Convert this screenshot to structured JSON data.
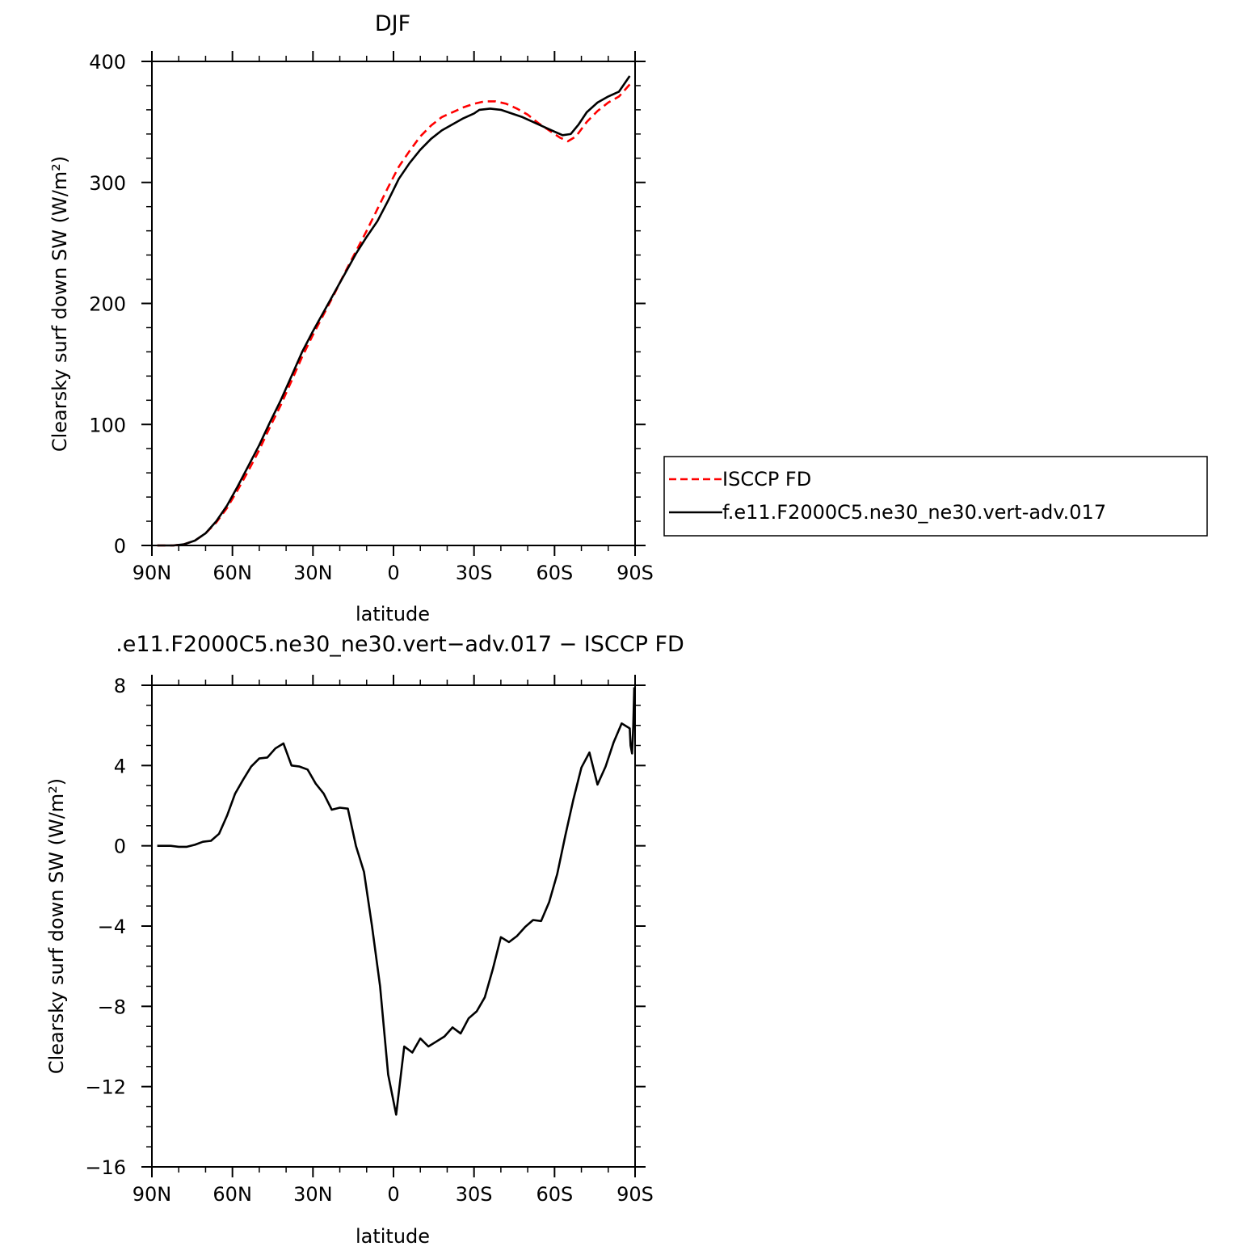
{
  "chart_data": [
    {
      "type": "line",
      "title": "DJF",
      "xlabel": "latitude",
      "ylabel": "Clearsky surf down SW (W/m²)",
      "x_axis_ticks": [
        "90N",
        "60N",
        "30N",
        "0",
        "30S",
        "60S",
        "90S"
      ],
      "y_axis_ticks": [
        "0",
        "100",
        "200",
        "300",
        "400"
      ],
      "xlim": [
        -90,
        90
      ],
      "ylim": [
        0,
        400
      ],
      "x_note": "latitude in degrees, negative = N, positive = S",
      "legend": {
        "placement": "right",
        "entries": [
          "ISCCP FD",
          "f.e11.F2000C5.ne30_ne30.vert-adv.017"
        ]
      },
      "series": [
        {
          "name": "ISCCP FD",
          "color": "#ff0000",
          "style": "dashed",
          "points": [
            [
              -88,
              0
            ],
            [
              -82,
              0
            ],
            [
              -78,
              1
            ],
            [
              -74,
              4
            ],
            [
              -70,
              10
            ],
            [
              -66,
              19
            ],
            [
              -62,
              31
            ],
            [
              -58,
              46
            ],
            [
              -54,
              62
            ],
            [
              -50,
              79
            ],
            [
              -46,
              98
            ],
            [
              -42,
              116
            ],
            [
              -38,
              136
            ],
            [
              -34,
              156
            ],
            [
              -30,
              174
            ],
            [
              -26,
              191
            ],
            [
              -22,
              208
            ],
            [
              -18,
              226
            ],
            [
              -14,
              243
            ],
            [
              -10,
              260
            ],
            [
              -6,
              278
            ],
            [
              -2,
              296
            ],
            [
              2,
              313
            ],
            [
              6,
              326
            ],
            [
              10,
              338
            ],
            [
              14,
              347
            ],
            [
              18,
              354
            ],
            [
              22,
              358
            ],
            [
              26,
              362
            ],
            [
              30,
              365
            ],
            [
              34,
              367
            ],
            [
              38,
              367
            ],
            [
              42,
              365
            ],
            [
              46,
              361
            ],
            [
              50,
              356
            ],
            [
              54,
              349
            ],
            [
              58,
              343
            ],
            [
              62,
              337
            ],
            [
              65,
              334
            ],
            [
              68,
              338
            ],
            [
              72,
              350
            ],
            [
              76,
              359
            ],
            [
              80,
              366
            ],
            [
              84,
              371
            ],
            [
              88,
              381
            ]
          ]
        },
        {
          "name": "f.e11.F2000C5.ne30_ne30.vert-adv.017",
          "color": "#000000",
          "style": "solid",
          "points": [
            [
              -88,
              0
            ],
            [
              -82,
              0
            ],
            [
              -78,
              1
            ],
            [
              -74,
              4
            ],
            [
              -70,
              10
            ],
            [
              -66,
              20
            ],
            [
              -62,
              33
            ],
            [
              -58,
              49
            ],
            [
              -54,
              66
            ],
            [
              -50,
              83
            ],
            [
              -46,
              102
            ],
            [
              -42,
              120
            ],
            [
              -38,
              140
            ],
            [
              -34,
              160
            ],
            [
              -30,
              177
            ],
            [
              -26,
              193
            ],
            [
              -22,
              209
            ],
            [
              -18,
              225
            ],
            [
              -14,
              241
            ],
            [
              -10,
              255
            ],
            [
              -6,
              268
            ],
            [
              -2,
              285
            ],
            [
              2,
              303
            ],
            [
              6,
              316
            ],
            [
              10,
              327
            ],
            [
              14,
              336
            ],
            [
              18,
              343
            ],
            [
              22,
              348
            ],
            [
              26,
              353
            ],
            [
              30,
              357
            ],
            [
              32,
              360
            ],
            [
              36,
              361
            ],
            [
              40,
              360
            ],
            [
              44,
              357
            ],
            [
              48,
              354
            ],
            [
              52,
              350
            ],
            [
              56,
              346
            ],
            [
              60,
              342
            ],
            [
              63,
              339
            ],
            [
              66,
              340
            ],
            [
              69,
              348
            ],
            [
              72,
              358
            ],
            [
              76,
              366
            ],
            [
              80,
              371
            ],
            [
              84,
              375
            ],
            [
              88,
              388
            ]
          ]
        }
      ]
    },
    {
      "type": "line",
      "title": ".e11.F2000C5.ne30_ne30.vert−adv.017 − ISCCP FD",
      "xlabel": "latitude",
      "ylabel": "Clearsky surf down SW (W/m²)",
      "x_axis_ticks": [
        "90N",
        "60N",
        "30N",
        "0",
        "30S",
        "60S",
        "90S"
      ],
      "y_axis_ticks": [
        "−16",
        "−12",
        "−8",
        "−4",
        "0",
        "4",
        "8"
      ],
      "xlim": [
        -90,
        90
      ],
      "ylim": [
        -16,
        8
      ],
      "series": [
        {
          "name": "",
          "color": "#000000",
          "style": "solid",
          "points": [
            [
              -88,
              0
            ],
            [
              -83,
              0
            ],
            [
              -80,
              -0.05
            ],
            [
              -77,
              -0.05
            ],
            [
              -74,
              0.05
            ],
            [
              -71,
              0.2
            ],
            [
              -68,
              0.25
            ],
            [
              -65,
              0.6
            ],
            [
              -62,
              1.5
            ],
            [
              -59,
              2.6
            ],
            [
              -56,
              3.3
            ],
            [
              -53,
              3.95
            ],
            [
              -50,
              4.35
            ],
            [
              -47,
              4.4
            ],
            [
              -44,
              4.85
            ],
            [
              -41,
              5.1
            ],
            [
              -38,
              4.0
            ],
            [
              -35,
              3.95
            ],
            [
              -32,
              3.8
            ],
            [
              -29,
              3.1
            ],
            [
              -26,
              2.6
            ],
            [
              -23,
              1.8
            ],
            [
              -20,
              1.9
            ],
            [
              -17,
              1.85
            ],
            [
              -14,
              0
            ],
            [
              -11,
              -1.3
            ],
            [
              -8,
              -4.0
            ],
            [
              -5,
              -7.0
            ],
            [
              -2,
              -11.4
            ],
            [
              1,
              -13.4
            ],
            [
              4,
              -10.0
            ],
            [
              7,
              -10.3
            ],
            [
              10,
              -9.6
            ],
            [
              13,
              -10.0
            ],
            [
              16,
              -9.75
            ],
            [
              19,
              -9.5
            ],
            [
              22,
              -9.05
            ],
            [
              25,
              -9.35
            ],
            [
              28,
              -8.6
            ],
            [
              31,
              -8.25
            ],
            [
              34,
              -7.55
            ],
            [
              37,
              -6.15
            ],
            [
              40,
              -4.55
            ],
            [
              43,
              -4.8
            ],
            [
              46,
              -4.5
            ],
            [
              49,
              -4.05
            ],
            [
              52,
              -3.7
            ],
            [
              55,
              -3.75
            ],
            [
              58,
              -2.8
            ],
            [
              61,
              -1.4
            ],
            [
              64,
              0.5
            ],
            [
              67,
              2.3
            ],
            [
              70,
              3.9
            ],
            [
              73,
              4.65
            ],
            [
              76,
              3.05
            ],
            [
              79,
              3.95
            ],
            [
              82,
              5.15
            ],
            [
              85,
              6.1
            ],
            [
              88,
              5.85
            ],
            [
              91,
              5.0
            ],
            [
              94,
              4.6
            ],
            [
              96,
              5.9
            ],
            [
              98,
              7.9
            ]
          ]
        }
      ]
    }
  ]
}
